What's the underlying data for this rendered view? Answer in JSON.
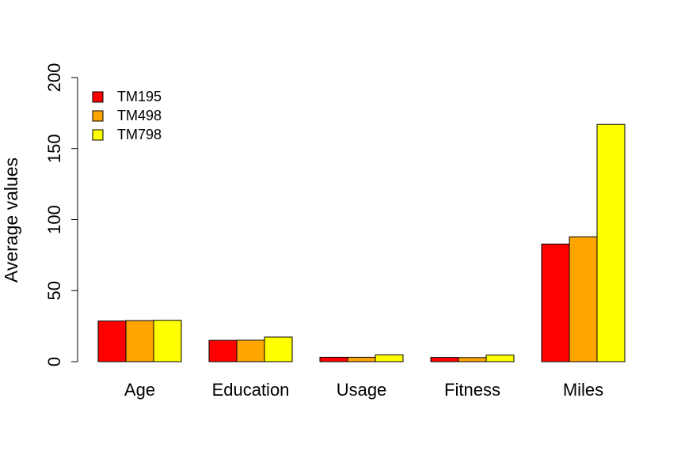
{
  "chart_data": {
    "type": "bar",
    "title": "",
    "xlabel": "",
    "ylabel": "Average values",
    "ylim": [
      0,
      200
    ],
    "yticks": [
      0,
      50,
      100,
      150,
      200
    ],
    "categories": [
      "Age",
      "Education",
      "Usage",
      "Fitness",
      "Miles"
    ],
    "series": [
      {
        "name": "TM195",
        "color": "#ff0000",
        "values": [
          28.6,
          15.0,
          3.1,
          3.0,
          82.8
        ]
      },
      {
        "name": "TM498",
        "color": "#ffa500",
        "values": [
          28.9,
          15.1,
          3.1,
          2.9,
          87.9
        ]
      },
      {
        "name": "TM798",
        "color": "#ffff00",
        "values": [
          29.1,
          17.3,
          4.8,
          4.6,
          167.0
        ]
      }
    ],
    "legend": {
      "position": "top-left"
    }
  }
}
